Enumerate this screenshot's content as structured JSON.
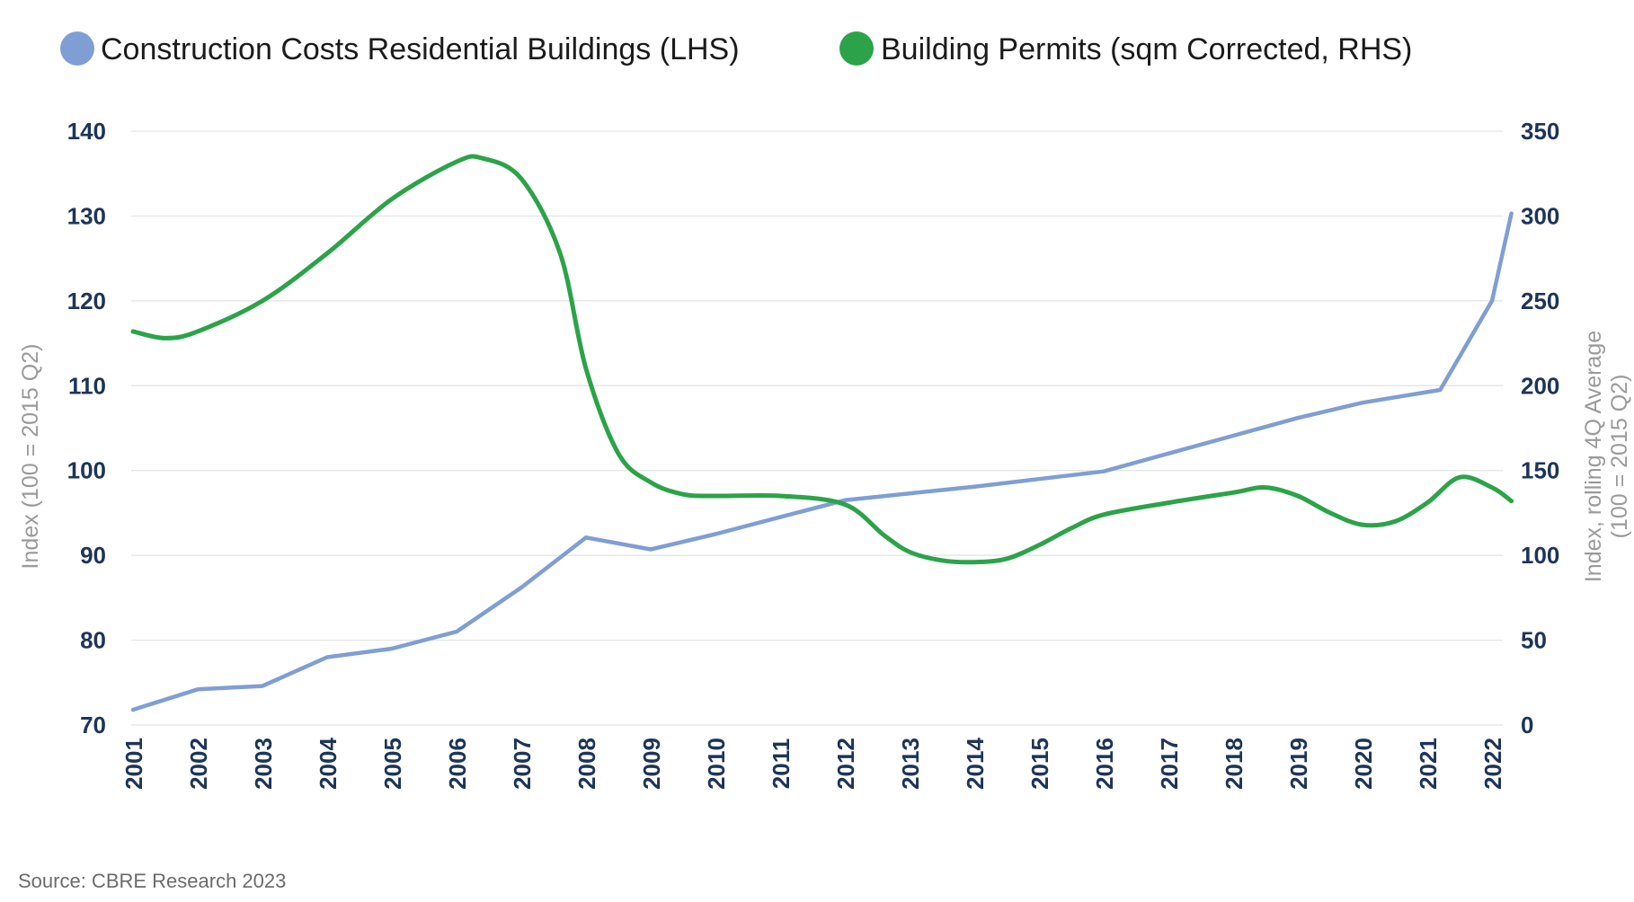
{
  "chart_data": {
    "type": "line",
    "title": "",
    "x": [
      2001,
      2002,
      2003,
      2004,
      2005,
      2006,
      2007,
      2008,
      2009,
      2010,
      2011,
      2012,
      2013,
      2014,
      2015,
      2016,
      2017,
      2018,
      2019,
      2020,
      2021,
      2022
    ],
    "x_tick_labels": [
      "2001",
      "2002",
      "2003",
      "2004",
      "2005",
      "2006",
      "2007",
      "2008",
      "2009",
      "2010",
      "2011",
      "2012",
      "2013",
      "2014",
      "2015",
      "2016",
      "2017",
      "2018",
      "2019",
      "2020",
      "2021",
      "2022"
    ],
    "ylabel_left": "Index (100 = 2015 Q2)",
    "ylabel_right_line1": "Index, rolling 4Q Average",
    "ylabel_right_line2": "(100 = 2015 Q2)",
    "ylim_left": [
      70,
      140
    ],
    "ylim_right": [
      0,
      350
    ],
    "yticks_left": [
      "70",
      "80",
      "90",
      "100",
      "110",
      "120",
      "130",
      "140"
    ],
    "yticks_right": [
      "0",
      "50",
      "100",
      "150",
      "200",
      "250",
      "300",
      "350"
    ],
    "grid": true,
    "legend_position": "top",
    "series": [
      {
        "name": "Construction Costs Residential Buildings (LHS)",
        "axis": "left",
        "color": "#7f9ed4",
        "curve": "linear",
        "points": [
          [
            2001,
            71.8
          ],
          [
            2002,
            74.2
          ],
          [
            2003,
            74.6
          ],
          [
            2004,
            78.0
          ],
          [
            2005,
            79.0
          ],
          [
            2006,
            81.0
          ],
          [
            2007,
            86.2
          ],
          [
            2008,
            92.1
          ],
          [
            2009,
            90.7
          ],
          [
            2010,
            92.5
          ],
          [
            2011,
            94.5
          ],
          [
            2012,
            96.5
          ],
          [
            2013,
            97.3
          ],
          [
            2014,
            98.1
          ],
          [
            2015,
            99.0
          ],
          [
            2016,
            99.9
          ],
          [
            2017,
            102.0
          ],
          [
            2018,
            104.1
          ],
          [
            2019,
            106.2
          ],
          [
            2020,
            108.0
          ],
          [
            2021.2,
            109.5
          ],
          [
            2022,
            120.0
          ],
          [
            2022.3,
            130.3
          ]
        ]
      },
      {
        "name": "Building Permits (sqm Corrected, RHS)",
        "axis": "right",
        "color": "#2ca349",
        "curve": "smooth",
        "points": [
          [
            2001,
            232
          ],
          [
            2001.5,
            228
          ],
          [
            2002,
            232
          ],
          [
            2003,
            250
          ],
          [
            2004,
            278
          ],
          [
            2005,
            310
          ],
          [
            2006,
            332
          ],
          [
            2006.4,
            334
          ],
          [
            2007,
            322
          ],
          [
            2007.6,
            278
          ],
          [
            2008,
            210
          ],
          [
            2008.5,
            160
          ],
          [
            2009,
            143
          ],
          [
            2009.5,
            136
          ],
          [
            2010,
            135
          ],
          [
            2011,
            135
          ],
          [
            2012,
            130
          ],
          [
            2012.6,
            112
          ],
          [
            2013,
            102
          ],
          [
            2013.5,
            97
          ],
          [
            2014,
            96
          ],
          [
            2014.5,
            98
          ],
          [
            2015,
            106
          ],
          [
            2015.5,
            116
          ],
          [
            2016,
            124
          ],
          [
            2017,
            131
          ],
          [
            2018,
            137
          ],
          [
            2018.5,
            140
          ],
          [
            2019,
            135
          ],
          [
            2019.5,
            125
          ],
          [
            2020,
            118
          ],
          [
            2020.5,
            120
          ],
          [
            2021,
            131
          ],
          [
            2021.5,
            146
          ],
          [
            2022,
            140
          ],
          [
            2022.3,
            132
          ]
        ]
      }
    ]
  },
  "source": "Source: CBRE Research 2023"
}
